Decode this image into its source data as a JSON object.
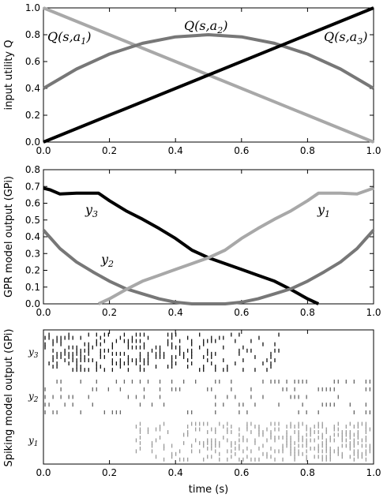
{
  "chart_data": [
    {
      "type": "line",
      "ylabel": "input utility Q",
      "xlim": [
        0,
        1
      ],
      "ylim": [
        0,
        1
      ],
      "xticks": [
        "0.0",
        "0.2",
        "0.4",
        "0.6",
        "0.8",
        "1.0"
      ],
      "yticks": [
        "0.0",
        "0.2",
        "0.4",
        "0.6",
        "0.8",
        "1.0"
      ],
      "series": [
        {
          "name": "Q(s,a1)",
          "label_base": "Q(s,",
          "label_var": "a",
          "label_sub": "1",
          "label_close": ")",
          "color": "#a8a8a8",
          "x": [
            0,
            1
          ],
          "y": [
            1.0,
            0.0
          ]
        },
        {
          "name": "Q(s,a2)",
          "label_base": "Q(s,",
          "label_var": "a",
          "label_sub": "2",
          "label_close": ")",
          "color": "#777777",
          "x": [
            0,
            0.1,
            0.2,
            0.3,
            0.4,
            0.5,
            0.6,
            0.7,
            0.8,
            0.9,
            1.0
          ],
          "y": [
            0.4,
            0.544,
            0.656,
            0.736,
            0.784,
            0.8,
            0.784,
            0.736,
            0.656,
            0.544,
            0.4
          ]
        },
        {
          "name": "Q(s,a3)",
          "label_base": "Q(s,",
          "label_var": "a",
          "label_sub": "3",
          "label_close": ")",
          "color": "#000000",
          "x": [
            0,
            1
          ],
          "y": [
            0.0,
            1.0
          ]
        }
      ]
    },
    {
      "type": "line",
      "ylabel": "GPR model output (GPi)",
      "xlim": [
        0,
        1
      ],
      "ylim": [
        0,
        0.8
      ],
      "xticks": [
        "0.0",
        "0.2",
        "0.4",
        "0.6",
        "0.8",
        "1.0"
      ],
      "yticks": [
        "0.0",
        "0.1",
        "0.2",
        "0.3",
        "0.4",
        "0.5",
        "0.6",
        "0.7",
        "0.8"
      ],
      "series": [
        {
          "name": "y3",
          "label_var": "y",
          "label_sub": "3",
          "color": "#000000",
          "x": [
            0,
            0.02,
            0.05,
            0.1,
            0.167,
            0.2,
            0.25,
            0.3,
            0.35,
            0.4,
            0.45,
            0.5,
            0.55,
            0.6,
            0.65,
            0.7,
            0.75,
            0.8,
            0.833
          ],
          "y": [
            0.69,
            0.68,
            0.655,
            0.66,
            0.66,
            0.615,
            0.555,
            0.505,
            0.45,
            0.39,
            0.32,
            0.275,
            0.24,
            0.205,
            0.17,
            0.135,
            0.085,
            0.03,
            0.0
          ]
        },
        {
          "name": "y2",
          "label_var": "y",
          "label_sub": "2",
          "color": "#777777",
          "x": [
            0,
            0.05,
            0.1,
            0.15,
            0.2,
            0.25,
            0.3,
            0.35,
            0.4,
            0.45,
            0.5,
            0.55,
            0.6,
            0.65,
            0.7,
            0.75,
            0.8,
            0.85,
            0.9,
            0.95,
            1.0
          ],
          "y": [
            0.44,
            0.33,
            0.25,
            0.19,
            0.135,
            0.09,
            0.06,
            0.03,
            0.01,
            0.0,
            0.0,
            0.0,
            0.01,
            0.03,
            0.06,
            0.09,
            0.135,
            0.19,
            0.25,
            0.33,
            0.44
          ]
        },
        {
          "name": "y1",
          "label_var": "y",
          "label_sub": "1",
          "color": "#a8a8a8",
          "x": [
            0.167,
            0.2,
            0.25,
            0.3,
            0.35,
            0.4,
            0.45,
            0.5,
            0.55,
            0.6,
            0.65,
            0.7,
            0.75,
            0.8,
            0.833,
            0.9,
            0.95,
            1.0
          ],
          "y": [
            0.0,
            0.03,
            0.085,
            0.135,
            0.17,
            0.205,
            0.24,
            0.275,
            0.32,
            0.39,
            0.45,
            0.505,
            0.555,
            0.615,
            0.66,
            0.66,
            0.655,
            0.69
          ]
        }
      ]
    },
    {
      "type": "scatter",
      "ylabel": "Spiking model output (GPi)",
      "xlabel": "time (s)",
      "xlim": [
        0,
        1
      ],
      "xticks": [
        "0.0",
        "0.2",
        "0.4",
        "0.6",
        "0.8",
        "1.0"
      ],
      "channel_labels": [
        {
          "var": "y",
          "sub": "3"
        },
        {
          "var": "y",
          "sub": "2"
        },
        {
          "var": "y",
          "sub": "1"
        }
      ],
      "raster": [
        {
          "channel": "y3",
          "color": "#111111",
          "rows": 12,
          "rate_from": 1.0,
          "rate_to": 0.0,
          "cutoff": 0.72,
          "offset": 0
        },
        {
          "channel": "y2",
          "color": "#666666",
          "rows": 5,
          "rate_from": 0.5,
          "rate_to": 0.5,
          "cutoff": 1.0,
          "offset": 0
        },
        {
          "channel": "y1",
          "color": "#9a9a9a",
          "rows": 14,
          "rate_from": 0.0,
          "rate_to": 1.0,
          "cutoff": 1.0,
          "offset": 0.28
        }
      ]
    }
  ]
}
